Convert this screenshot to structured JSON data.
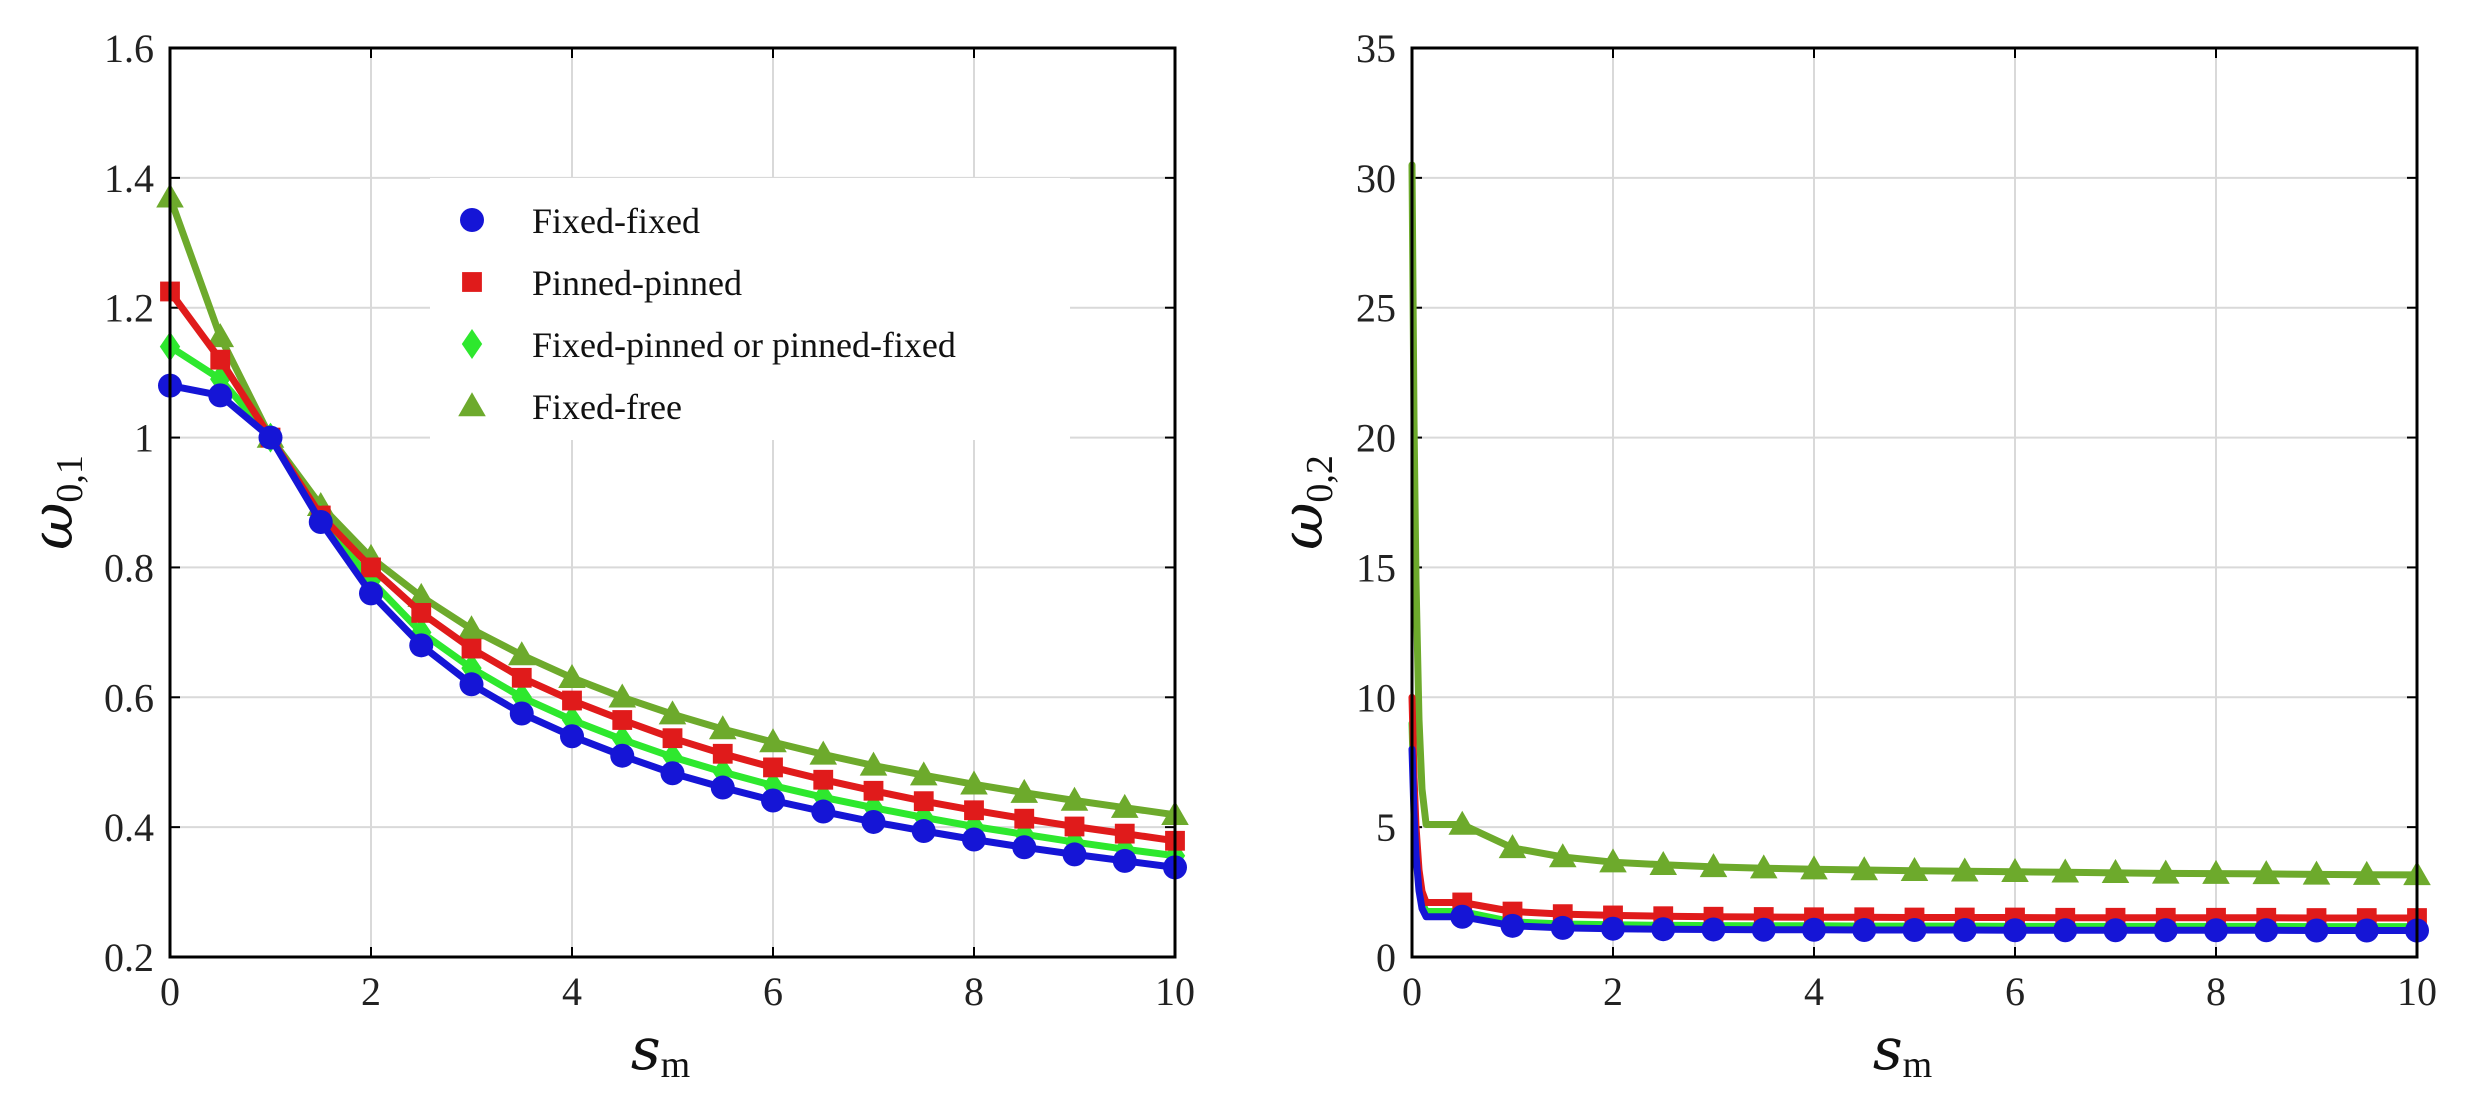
{
  "chart_data": [
    {
      "type": "line",
      "panel": "left",
      "xlabel": "s",
      "xlabel_sub": "m",
      "ylabel": "ω",
      "ylabel_sub": "0,1",
      "xlim": [
        0,
        10
      ],
      "ylim": [
        0.2,
        1.6
      ],
      "x_ticks": [
        0,
        2,
        4,
        6,
        8,
        10
      ],
      "y_ticks": [
        0.2,
        0.4,
        0.6,
        0.8,
        1,
        1.2,
        1.4,
        1.6
      ],
      "x_tick_labels": [
        "0",
        "2",
        "4",
        "6",
        "8",
        "10"
      ],
      "y_tick_labels": [
        "0.2",
        "0.4",
        "0.6",
        "0.8",
        "1",
        "1.2",
        "1.4",
        "1.6"
      ],
      "grid": true,
      "legend_position": "upper-center",
      "x": [
        0,
        0.5,
        1,
        1.5,
        2,
        2.5,
        3,
        3.5,
        4,
        4.5,
        5,
        5.5,
        6,
        6.5,
        7,
        7.5,
        8,
        8.5,
        9,
        9.5,
        10
      ],
      "series": [
        {
          "name": "Fixed-fixed",
          "marker": "circle",
          "color": "#1515d6",
          "values": [
            1.08,
            1.065,
            1.0,
            0.87,
            0.76,
            0.68,
            0.62,
            0.575,
            0.54,
            0.51,
            0.483,
            0.461,
            0.441,
            0.424,
            0.408,
            0.394,
            0.381,
            0.369,
            0.358,
            0.348,
            0.338
          ]
        },
        {
          "name": "Pinned-pinned",
          "marker": "square",
          "color": "#e01b1b",
          "values": [
            1.225,
            1.12,
            1.0,
            0.88,
            0.8,
            0.73,
            0.675,
            0.63,
            0.595,
            0.565,
            0.537,
            0.513,
            0.492,
            0.473,
            0.456,
            0.44,
            0.426,
            0.413,
            0.401,
            0.39,
            0.379
          ]
        },
        {
          "name": "Fixed-pinned or pinned-fixed",
          "marker": "diamond",
          "color": "#2ee82e",
          "values": [
            1.14,
            1.09,
            1.0,
            0.875,
            0.78,
            0.7,
            0.645,
            0.6,
            0.565,
            0.535,
            0.508,
            0.485,
            0.464,
            0.446,
            0.43,
            0.415,
            0.401,
            0.389,
            0.377,
            0.366,
            0.356
          ]
        },
        {
          "name": "Fixed-free",
          "marker": "triangle",
          "color": "#6daa2c",
          "values": [
            1.37,
            1.155,
            1.0,
            0.895,
            0.815,
            0.755,
            0.705,
            0.665,
            0.63,
            0.6,
            0.574,
            0.551,
            0.531,
            0.512,
            0.495,
            0.48,
            0.466,
            0.453,
            0.441,
            0.43,
            0.419
          ]
        }
      ]
    },
    {
      "type": "line",
      "panel": "right",
      "xlabel": "s",
      "xlabel_sub": "m",
      "ylabel": "ω",
      "ylabel_sub": "0,2",
      "xlim": [
        0,
        10
      ],
      "ylim": [
        0,
        35
      ],
      "x_ticks": [
        0,
        2,
        4,
        6,
        8,
        10
      ],
      "y_ticks": [
        0,
        5,
        10,
        15,
        20,
        25,
        30,
        35
      ],
      "x_tick_labels": [
        "0",
        "2",
        "4",
        "6",
        "8",
        "10"
      ],
      "y_tick_labels": [
        "0",
        "5",
        "10",
        "15",
        "20",
        "25",
        "30",
        "35"
      ],
      "grid": true,
      "x": [
        0,
        0.5,
        1,
        1.5,
        2,
        2.5,
        3,
        3.5,
        4,
        4.5,
        5,
        5.5,
        6,
        6.5,
        7,
        7.5,
        8,
        8.5,
        9,
        9.5,
        10
      ],
      "series": [
        {
          "name": "Fixed-fixed",
          "marker": "circle",
          "color": "#1515d6",
          "values": [
            8.0,
            1.55,
            1.2,
            1.12,
            1.09,
            1.07,
            1.06,
            1.05,
            1.05,
            1.04,
            1.04,
            1.04,
            1.03,
            1.03,
            1.03,
            1.03,
            1.03,
            1.03,
            1.02,
            1.02,
            1.02
          ]
        },
        {
          "name": "Pinned-pinned",
          "marker": "square",
          "color": "#e01b1b",
          "values": [
            10.0,
            2.1,
            1.75,
            1.65,
            1.6,
            1.57,
            1.55,
            1.54,
            1.53,
            1.53,
            1.52,
            1.52,
            1.52,
            1.51,
            1.51,
            1.51,
            1.51,
            1.51,
            1.5,
            1.5,
            1.5
          ]
        },
        {
          "name": "Fixed-pinned or pinned-fixed",
          "marker": "diamond",
          "color": "#2ee82e",
          "values": [
            9.0,
            1.75,
            1.35,
            1.27,
            1.24,
            1.22,
            1.21,
            1.2,
            1.2,
            1.19,
            1.19,
            1.19,
            1.18,
            1.18,
            1.18,
            1.18,
            1.18,
            1.18,
            1.17,
            1.17,
            1.17
          ]
        },
        {
          "name": "Fixed-free",
          "marker": "triangle",
          "color": "#6daa2c",
          "values": [
            30.5,
            5.1,
            4.2,
            3.85,
            3.65,
            3.55,
            3.47,
            3.42,
            3.38,
            3.35,
            3.32,
            3.3,
            3.28,
            3.26,
            3.24,
            3.22,
            3.21,
            3.2,
            3.18,
            3.17,
            3.16
          ]
        }
      ]
    }
  ]
}
